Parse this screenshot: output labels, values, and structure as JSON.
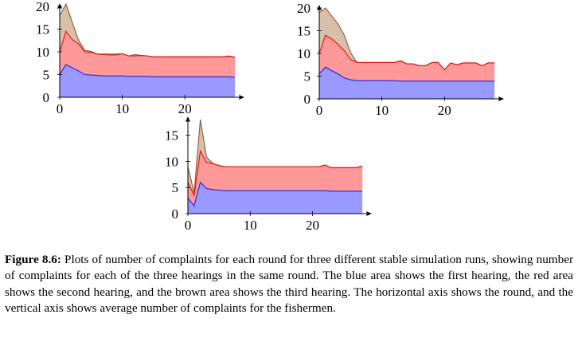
{
  "chart_data": [
    {
      "type": "area",
      "stacked": true,
      "x": [
        0,
        1,
        2,
        3,
        4,
        5,
        6,
        7,
        8,
        9,
        10,
        11,
        12,
        13,
        14,
        15,
        16,
        17,
        18,
        19,
        20,
        21,
        22,
        23,
        24,
        25,
        26,
        27,
        28
      ],
      "series": [
        {
          "values": [
            5,
            7.2,
            6.5,
            5.8,
            5,
            4.9,
            4.8,
            4.7,
            4.7,
            4.7,
            4.7,
            4.6,
            4.6,
            4.6,
            4.6,
            4.5,
            4.5,
            4.5,
            4.5,
            4.5,
            4.5,
            4.5,
            4.5,
            4.5,
            4.5,
            4.5,
            4.5,
            4.5,
            4.4
          ],
          "color": "#9999ff"
        },
        {
          "values": [
            5,
            7.3,
            6.2,
            6,
            5,
            5,
            4.7,
            4.7,
            4.6,
            4.6,
            4.9,
            4.5,
            4.5,
            4.6,
            4.5,
            4.4,
            4.4,
            4.4,
            4.4,
            4.4,
            4.4,
            4.4,
            4.4,
            4.4,
            4.4,
            4.4,
            4.4,
            4.5,
            4.4
          ],
          "color": "#ff9999"
        },
        {
          "values": [
            8,
            6,
            3.8,
            0.8,
            0.3,
            0.2,
            0,
            0.1,
            0.2,
            0.2,
            0,
            0,
            0.3,
            0,
            0,
            0,
            0,
            0,
            0,
            0,
            0,
            0,
            0,
            0,
            0,
            0,
            0,
            0.1,
            0
          ],
          "color": "#d8bfaa"
        }
      ],
      "xticks": [
        0,
        10,
        20
      ],
      "yticks": [
        0,
        5,
        10,
        15,
        20
      ],
      "xlim": [
        0,
        29
      ],
      "ylim": [
        0,
        20
      ]
    },
    {
      "type": "area",
      "stacked": true,
      "x": [
        0,
        1,
        2,
        3,
        4,
        5,
        6,
        7,
        8,
        9,
        10,
        11,
        12,
        13,
        14,
        15,
        16,
        17,
        18,
        19,
        20,
        21,
        22,
        23,
        24,
        25,
        26,
        27,
        28
      ],
      "series": [
        {
          "values": [
            5.5,
            7,
            6.2,
            5.5,
            4.6,
            4.2,
            4,
            4,
            4,
            4,
            4,
            4,
            4,
            3.9,
            3.9,
            3.9,
            3.9,
            3.9,
            3.9,
            3.9,
            3.9,
            3.9,
            3.9,
            3.9,
            3.9,
            3.9,
            3.9,
            3.9,
            3.9
          ],
          "color": "#9999ff"
        },
        {
          "values": [
            4.5,
            7,
            7,
            6.5,
            6,
            4.5,
            4,
            4,
            4,
            4,
            4,
            4,
            4,
            4.4,
            3.8,
            3.8,
            3.4,
            3.4,
            4.1,
            4.1,
            2.5,
            4,
            3.6,
            4,
            4,
            4,
            3.4,
            4,
            4
          ],
          "color": "#ff9999"
        },
        {
          "values": [
            9,
            6,
            5,
            4.5,
            3.4,
            1.5,
            0,
            0,
            0,
            0,
            0,
            0,
            0,
            0.1,
            0,
            0,
            0,
            0,
            0,
            0,
            0,
            0,
            0,
            0,
            0,
            0,
            0,
            0,
            0
          ],
          "color": "#d8bfaa"
        }
      ],
      "xticks": [
        0,
        10,
        20
      ],
      "yticks": [
        0,
        5,
        10,
        15,
        20
      ],
      "xlim": [
        0,
        29
      ],
      "ylim": [
        0,
        20
      ]
    },
    {
      "type": "area",
      "stacked": true,
      "x": [
        0,
        1,
        2,
        3,
        4,
        5,
        6,
        7,
        8,
        9,
        10,
        11,
        12,
        13,
        14,
        15,
        16,
        17,
        18,
        19,
        20,
        21,
        22,
        23,
        24,
        25,
        26,
        27,
        28
      ],
      "series": [
        {
          "values": [
            3,
            1.5,
            6,
            4.8,
            4.6,
            4.5,
            4.4,
            4.4,
            4.4,
            4.4,
            4.4,
            4.4,
            4.4,
            4.4,
            4.4,
            4.4,
            4.4,
            4.4,
            4.4,
            4.4,
            4.4,
            4.4,
            4.4,
            4.3,
            4.3,
            4.3,
            4.3,
            4.3,
            4.3
          ],
          "color": "#9999ff"
        },
        {
          "values": [
            3,
            2,
            6,
            5,
            5,
            4.7,
            4.6,
            4.6,
            4.6,
            4.6,
            4.6,
            4.6,
            4.6,
            4.6,
            4.6,
            4.6,
            4.6,
            4.6,
            4.6,
            4.6,
            4.6,
            4.6,
            4.9,
            4.5,
            4.5,
            4.5,
            4.5,
            4.5,
            4.8
          ],
          "color": "#ff9999"
        },
        {
          "values": [
            3,
            0.5,
            6,
            1,
            0,
            0,
            0,
            0,
            0,
            0,
            0,
            0,
            0,
            0,
            0,
            0,
            0,
            0,
            0,
            0,
            0,
            0,
            0,
            0,
            0,
            0,
            0,
            0,
            0
          ],
          "color": "#d8bfaa"
        }
      ],
      "xticks": [
        0,
        10,
        20
      ],
      "yticks": [
        0,
        5,
        10,
        15
      ],
      "xlim": [
        0,
        29
      ],
      "ylim": [
        0,
        18
      ]
    }
  ],
  "caption": {
    "label": "Figure 8.6:",
    "text": " Plots of number of complaints for each round for three different stable simulation runs, showing number of complaints for each of the three hearings in the same round. The blue area shows the first hearing, the red area shows the second hearing, and the brown area shows the third hearing. The horizontal axis shows the round, and the vertical axis shows average number of complaints for the fishermen."
  },
  "colors": {
    "first_fill": "#9999ff",
    "first_line": "#2222dd",
    "second_fill": "#ff9999",
    "second_line": "#dd1111",
    "third_fill": "#d8bfaa",
    "third_line": "#8a5a3c"
  }
}
